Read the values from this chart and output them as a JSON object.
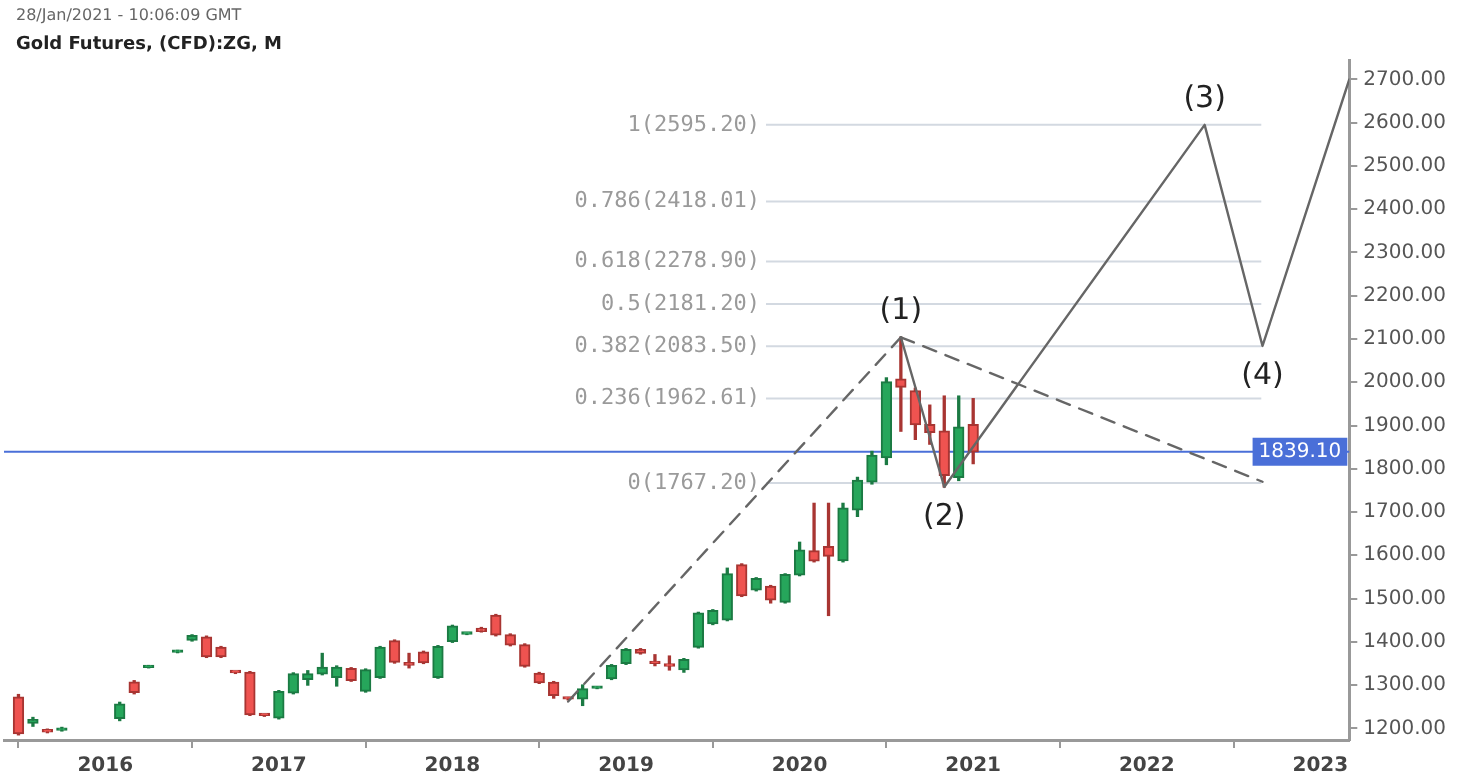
{
  "chart_data": {
    "type": "candlestick",
    "title": "Gold Futures, (CFD):ZG, M",
    "annotations": [
      "28/Jan/2021 - 10:06:09 GMT",
      {
        "text": "(1)",
        "x": "2020-08",
        "y": 2104
      },
      {
        "text": "(2)",
        "x": "2020-11",
        "y": 1758
      },
      {
        "text": "(3)",
        "x": "2022-05",
        "y": 2595
      },
      {
        "text": "(4)",
        "x": "2022-09",
        "y": 2084
      }
    ],
    "xlim": [
      "2015-06",
      "2023-03"
    ],
    "xticks": [
      "2016",
      "2017",
      "2018",
      "2019",
      "2020",
      "2021",
      "2022",
      "2023"
    ],
    "ylim": [
      1173,
      2745
    ],
    "yticks": [
      {
        "value": 1200,
        "label": "1200.00"
      },
      {
        "value": 1300,
        "label": "1300.00"
      },
      {
        "value": 1400,
        "label": "1400.00"
      },
      {
        "value": 1500,
        "label": "1500.00"
      },
      {
        "value": 1600,
        "label": "1600.00"
      },
      {
        "value": 1700,
        "label": "1700.00"
      },
      {
        "value": 1800,
        "label": "1800.00"
      },
      {
        "value": 1900,
        "label": "1900.00"
      },
      {
        "value": 2000,
        "label": "2000.00"
      },
      {
        "value": 2100,
        "label": "2100.00"
      },
      {
        "value": 2200,
        "label": "2200.00"
      },
      {
        "value": 2300,
        "label": "2300.00"
      },
      {
        "value": 2400,
        "label": "2400.00"
      },
      {
        "value": 2500,
        "label": "2500.00"
      },
      {
        "value": 2600,
        "label": "2600.00"
      },
      {
        "value": 2700,
        "label": "2700.00"
      }
    ],
    "marker": "none",
    "ref_lines": [
      {
        "axis": "y",
        "value": 2595.2,
        "label": "1(2595.20)",
        "color": "#d3d9e1"
      },
      {
        "axis": "y",
        "value": 2418.01,
        "label": "0.786(2418.01)",
        "color": "#d3d9e1"
      },
      {
        "axis": "y",
        "value": 2278.9,
        "label": "0.618(2278.90)",
        "color": "#d3d9e1"
      },
      {
        "axis": "y",
        "value": 2181.2,
        "label": "0.5(2181.20)",
        "color": "#d3d9e1"
      },
      {
        "axis": "y",
        "value": 2083.5,
        "label": "0.382(2083.50)",
        "color": "#d3d9e1"
      },
      {
        "axis": "y",
        "value": 1962.61,
        "label": "0.236(1962.61)",
        "color": "#d3d9e1"
      },
      {
        "axis": "y",
        "value": 1767.2,
        "label": "0(1767.20)",
        "color": "#d3d9e1"
      },
      {
        "axis": "y",
        "value": 1839.1,
        "label": "1839.10",
        "color": "#4a6fd8"
      }
    ],
    "series": [
      {
        "x": [
          "2015-07",
          "2015-08",
          "2015-09",
          "2015-10",
          "2016-02",
          "2016-03",
          "2016-04",
          "2016-06",
          "2016-07",
          "2016-08",
          "2016-09",
          "2016-10",
          "2016-11",
          "2016-12",
          "2017-01",
          "2017-02",
          "2017-03",
          "2017-04",
          "2017-05",
          "2017-06",
          "2017-07",
          "2017-08",
          "2017-09",
          "2017-10",
          "2017-11",
          "2017-12",
          "2018-01",
          "2018-02",
          "2018-03",
          "2018-04",
          "2018-05",
          "2018-06",
          "2018-07",
          "2018-08",
          "2018-09",
          "2018-10",
          "2018-11",
          "2018-12",
          "2019-01",
          "2019-02",
          "2019-03",
          "2019-04",
          "2019-05",
          "2019-06",
          "2019-07",
          "2019-08",
          "2019-09",
          "2019-10",
          "2019-11",
          "2019-12",
          "2020-01",
          "2020-02",
          "2020-03",
          "2020-04",
          "2020-05",
          "2020-06",
          "2020-07",
          "2020-08",
          "2020-09",
          "2020-10",
          "2020-11",
          "2020-12",
          "2021-01"
        ],
        "ohlc": [
          [
            1272,
            1278,
            1185,
            1188
          ],
          [
            1212,
            1225,
            1205,
            1220
          ],
          [
            1195,
            1198,
            1190,
            1192
          ],
          [
            1196,
            1202,
            1194,
            1200
          ],
          [
            1223,
            1260,
            1218,
            1256
          ],
          [
            1307,
            1310,
            1280,
            1283
          ],
          [
            1341,
            1345,
            1340,
            1343
          ],
          [
            1376,
            1380,
            1375,
            1378
          ],
          [
            1404,
            1416,
            1402,
            1414
          ],
          [
            1411,
            1413,
            1364,
            1366
          ],
          [
            1387,
            1389,
            1364,
            1366
          ],
          [
            1330,
            1331,
            1327,
            1329
          ],
          [
            1329,
            1331,
            1230,
            1232
          ],
          [
            1231,
            1232,
            1228,
            1230
          ],
          [
            1224,
            1287,
            1222,
            1285
          ],
          [
            1282,
            1328,
            1280,
            1326
          ],
          [
            1313,
            1333,
            1300,
            1326
          ],
          [
            1326,
            1373,
            1324,
            1341
          ],
          [
            1318,
            1344,
            1298,
            1341
          ],
          [
            1338,
            1340,
            1309,
            1311
          ],
          [
            1286,
            1337,
            1284,
            1335
          ],
          [
            1318,
            1389,
            1316,
            1387
          ],
          [
            1402,
            1404,
            1351,
            1353
          ],
          [
            1352,
            1373,
            1340,
            1346
          ],
          [
            1376,
            1378,
            1350,
            1352
          ],
          [
            1318,
            1391,
            1316,
            1389
          ],
          [
            1401,
            1438,
            1399,
            1436
          ],
          [
            1418,
            1420,
            1417,
            1419
          ],
          [
            1431,
            1433,
            1423,
            1424
          ],
          [
            1461,
            1463,
            1414,
            1416
          ],
          [
            1416,
            1418,
            1391,
            1393
          ],
          [
            1393,
            1395,
            1342,
            1344
          ],
          [
            1327,
            1329,
            1304,
            1306
          ],
          [
            1306,
            1308,
            1270,
            1276
          ],
          [
            1269,
            1271,
            1266,
            1268
          ],
          [
            1268,
            1300,
            1253,
            1291
          ],
          [
            1293,
            1296,
            1292,
            1294
          ],
          [
            1315,
            1347,
            1313,
            1345
          ],
          [
            1350,
            1384,
            1348,
            1382
          ],
          [
            1382,
            1384,
            1372,
            1374
          ],
          [
            1351,
            1370,
            1345,
            1350
          ],
          [
            1345,
            1367,
            1335,
            1344
          ],
          [
            1336,
            1361,
            1330,
            1359
          ],
          [
            1388,
            1468,
            1386,
            1466
          ],
          [
            1442,
            1474,
            1440,
            1472
          ],
          [
            1451,
            1570,
            1449,
            1557
          ],
          [
            1578,
            1580,
            1505,
            1507
          ],
          [
            1520,
            1548,
            1518,
            1546
          ],
          [
            1528,
            1530,
            1490,
            1497
          ],
          [
            1492,
            1557,
            1490,
            1555
          ],
          [
            1555,
            1630,
            1553,
            1612
          ],
          [
            1610,
            1720,
            1585,
            1587
          ],
          [
            1620,
            1720,
            1461,
            1598
          ],
          [
            1588,
            1720,
            1585,
            1709
          ],
          [
            1705,
            1780,
            1690,
            1773
          ],
          [
            1770,
            1840,
            1765,
            1831
          ],
          [
            1826,
            2010,
            1810,
            2001
          ],
          [
            2007,
            2104,
            1887,
            1989
          ],
          [
            1980,
            1986,
            1868,
            1902
          ],
          [
            1902,
            1947,
            1857,
            1884
          ],
          [
            1887,
            1968,
            1758,
            1785
          ],
          [
            1780,
            1968,
            1773,
            1896
          ],
          [
            1902,
            1962,
            1812,
            1839.1
          ]
        ]
      },
      {
        "type": "line",
        "color": "#666666",
        "line_style": "dashed",
        "x": [
          "2018-09",
          "2020-08"
        ],
        "values": [
          1262,
          2104
        ]
      },
      {
        "type": "line",
        "color": "#666666",
        "line_style": "solid",
        "x": [
          "2020-08",
          "2020-11",
          "2022-05",
          "2022-09",
          "2023-03"
        ],
        "values": [
          2104,
          1758,
          2595,
          2084,
          2700
        ]
      },
      {
        "type": "line",
        "color": "#666666",
        "line_style": "dashed",
        "x": [
          "2020-08",
          "2022-09"
        ],
        "values": [
          2104,
          1770
        ]
      }
    ]
  }
}
